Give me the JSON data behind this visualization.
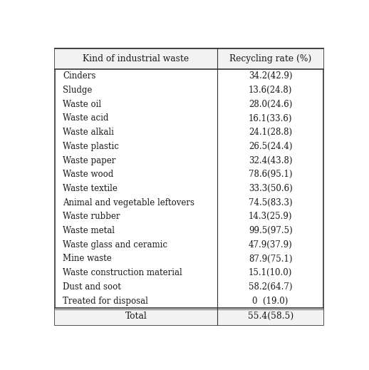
{
  "col1_header": "Kind of industrial waste",
  "col2_header": "Recycling rate (%)",
  "rows": [
    [
      "Cinders",
      "34.2(42.9)"
    ],
    [
      "Sludge",
      "13.6(24.8)"
    ],
    [
      "Waste oil",
      "28.0(24.6)"
    ],
    [
      "Waste acid",
      "16.1(33.6)"
    ],
    [
      "Waste alkali",
      "24.1(28.8)"
    ],
    [
      "Waste plastic",
      "26.5(24.4)"
    ],
    [
      "Waste paper",
      "32.4(43.8)"
    ],
    [
      "Waste wood",
      "78.6(95.1)"
    ],
    [
      "Waste textile",
      "33.3(50.6)"
    ],
    [
      "Animal and vegetable leftovers",
      "74.5(83.3)"
    ],
    [
      "Waste rubber",
      "14.3(25.9)"
    ],
    [
      "Waste metal",
      "99.5(97.5)"
    ],
    [
      "Waste glass and ceramic",
      "47.9(37.9)"
    ],
    [
      "Mine waste",
      "87.9(75.1)"
    ],
    [
      "Waste construction material",
      "15.1(10.0)"
    ],
    [
      "Dust and soot",
      "58.2(64.7)"
    ],
    [
      "Treated for disposal",
      "0  (19.0)"
    ]
  ],
  "total_row": [
    "Total",
    "55.4(58.5)"
  ],
  "bg_color": "#ffffff",
  "text_color": "#1a1a1a",
  "border_color": "#333333",
  "font_size": 8.5,
  "header_font_size": 8.8,
  "col_split": 0.605
}
